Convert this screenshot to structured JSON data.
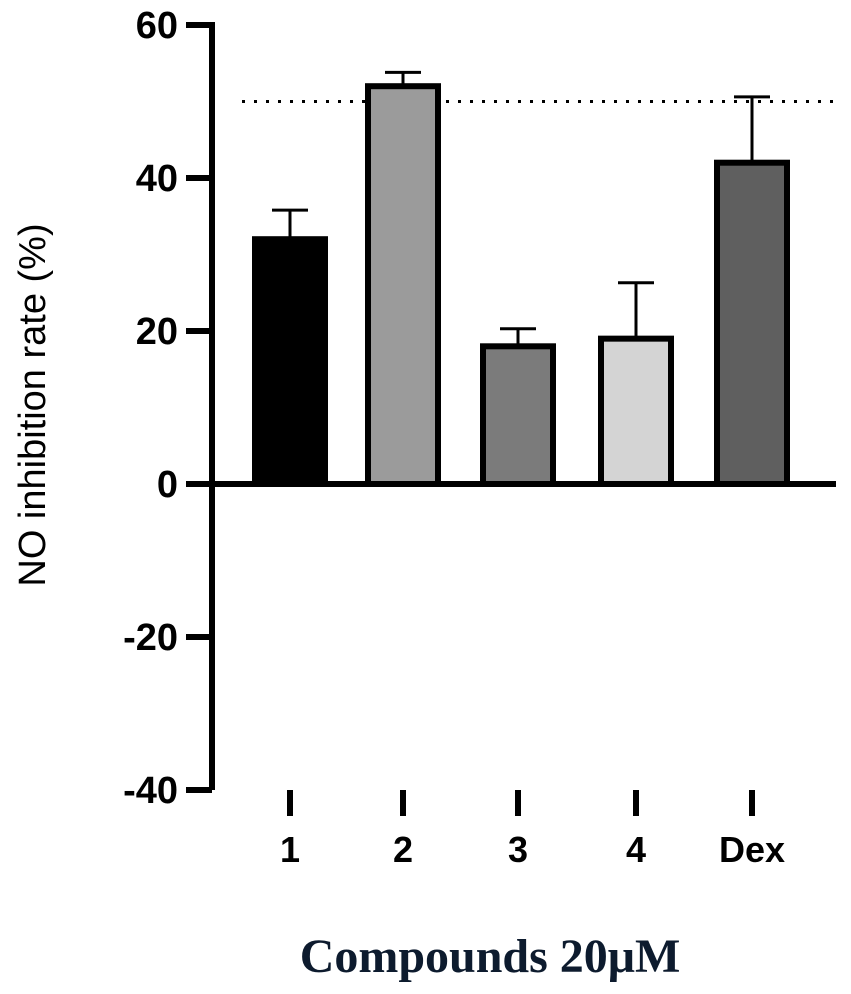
{
  "chart_data": {
    "type": "bar",
    "categories": [
      "1",
      "2",
      "3",
      "4",
      "Dex"
    ],
    "values": [
      32,
      52,
      18,
      19,
      42
    ],
    "errors": [
      3.8,
      1.8,
      2.3,
      7.3,
      8.6
    ],
    "colors": [
      "#000000",
      "#9b9b9b",
      "#7b7b7b",
      "#d4d4d4",
      "#5f5f5f"
    ],
    "reference_line": 50,
    "reference_line_style": "dotted",
    "ylim": [
      -40,
      60
    ],
    "yticks": [
      "60",
      "40",
      "20",
      "0",
      "-20",
      "-40"
    ],
    "ylabel": "NO inhibition rate (%)",
    "xlabel": "Compounds 20μM",
    "legend": "none",
    "grid": false
  }
}
